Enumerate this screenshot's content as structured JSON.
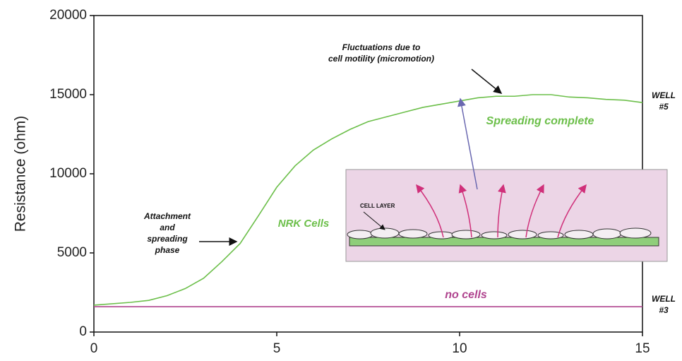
{
  "chart_data": {
    "type": "line",
    "y_label": "Resistance (ohm)",
    "x": [
      0,
      1,
      1.5,
      2,
      2.5,
      3,
      3.5,
      4,
      4.5,
      5,
      5.5,
      6,
      6.5,
      7,
      7.5,
      8,
      8.5,
      9,
      9.5,
      10,
      10.5,
      11,
      11.5,
      12,
      12.5,
      13,
      13.5,
      14,
      14.5,
      15
    ],
    "series": [
      {
        "name": "NRK Cells",
        "color": "#6cbf4a",
        "values": [
          1700,
          1875,
          2000,
          2300,
          2750,
          3400,
          4450,
          5600,
          7350,
          9150,
          10500,
          11500,
          12200,
          12800,
          13300,
          13600,
          13900,
          14200,
          14400,
          14600,
          14800,
          14900,
          14900,
          15000,
          15000,
          14850,
          14800,
          14700,
          14650,
          14500
        ]
      },
      {
        "name": "no cells",
        "color": "#b0458f",
        "values": [
          1600,
          1600,
          1600,
          1600,
          1600,
          1600,
          1600,
          1600,
          1600,
          1600,
          1600,
          1600,
          1600,
          1600,
          1600,
          1600,
          1600,
          1600,
          1600,
          1600,
          1600,
          1600,
          1600,
          1600,
          1600,
          1600,
          1600,
          1600,
          1600,
          1600
        ]
      }
    ],
    "xlim": [
      0,
      15
    ],
    "xticks": [
      0,
      5,
      10,
      15
    ],
    "ylim": [
      0,
      20000
    ],
    "yticks": [
      0,
      5000,
      10000,
      15000,
      20000
    ],
    "grid": false,
    "annotations": {
      "fluctuations": [
        "Fluctuations due to",
        "cell motility (micromotion)"
      ],
      "spreading_complete": "Spreading complete",
      "attachment": [
        "Attachment",
        "and",
        "spreading",
        "phase"
      ],
      "well5": [
        "WELL",
        "#5"
      ],
      "well3": [
        "WELL",
        "#3"
      ],
      "cell_layer": "CELL LAYER"
    }
  }
}
